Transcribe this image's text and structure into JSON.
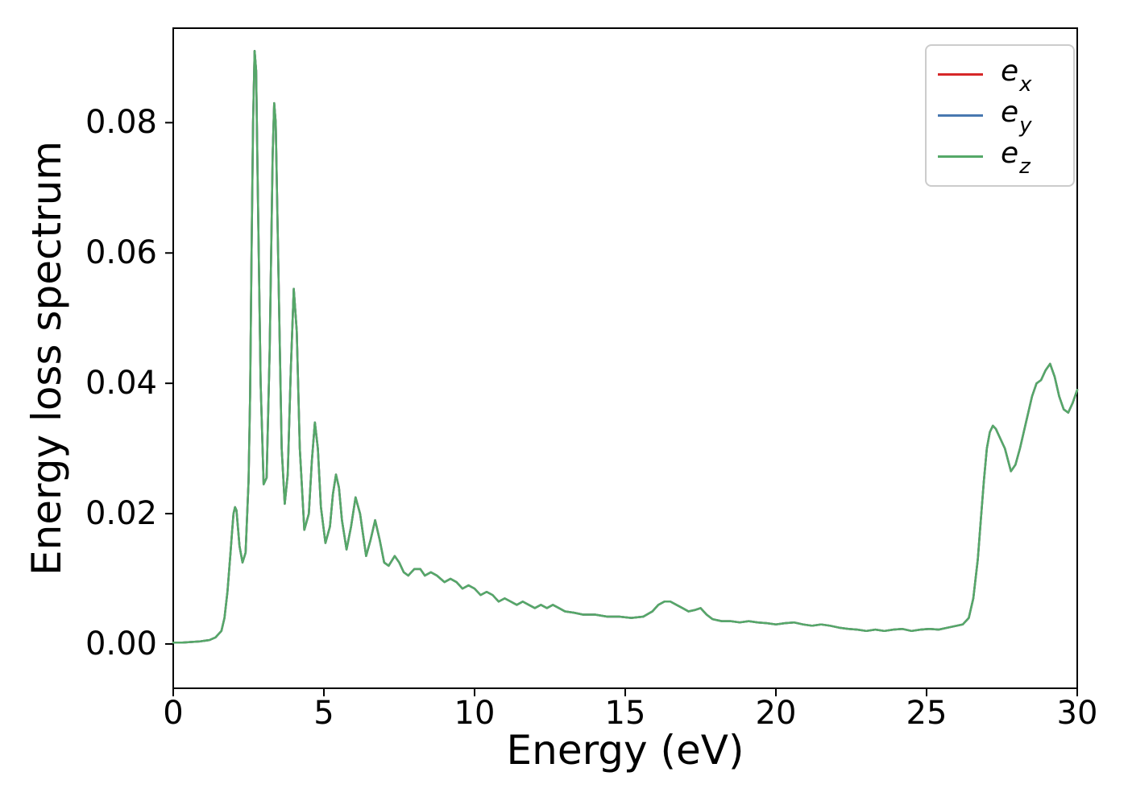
{
  "axes": {
    "xlabel": "Energy (eV)",
    "ylabel": "Energy loss spectrum",
    "xticks": {
      "values": [
        0,
        5,
        10,
        15,
        20,
        25,
        30
      ],
      "labels": [
        "0",
        "5",
        "10",
        "15",
        "20",
        "25",
        "30"
      ]
    },
    "yticks": {
      "values": [
        0.0,
        0.02,
        0.04,
        0.06,
        0.08
      ],
      "labels": [
        "0.00",
        "0.02",
        "0.04",
        "0.06",
        "0.08"
      ]
    }
  },
  "legend": {
    "items": [
      {
        "base": "e",
        "sub": "x",
        "color": "#d62728"
      },
      {
        "base": "e",
        "sub": "y",
        "color": "#4878b0"
      },
      {
        "base": "e",
        "sub": "z",
        "color": "#55a868"
      }
    ]
  },
  "chart_data": {
    "type": "line",
    "title": "",
    "xlabel": "Energy (eV)",
    "ylabel": "Energy loss spectrum",
    "xlim": [
      0,
      30
    ],
    "ylim": [
      -0.0068,
      0.0945
    ],
    "grid": false,
    "legend_position": "upper right",
    "note": "Three polarization spectra e_x, e_y, e_z coincide exactly; only the last-drawn green e_z curve is visible.",
    "x": [
      0,
      0.3,
      0.6,
      0.9,
      1.2,
      1.4,
      1.6,
      1.7,
      1.8,
      1.9,
      1.95,
      2.0,
      2.05,
      2.1,
      2.2,
      2.3,
      2.4,
      2.5,
      2.55,
      2.6,
      2.65,
      2.7,
      2.75,
      2.8,
      2.9,
      3.0,
      3.1,
      3.2,
      3.3,
      3.35,
      3.4,
      3.5,
      3.6,
      3.7,
      3.8,
      3.9,
      4.0,
      4.1,
      4.2,
      4.35,
      4.5,
      4.6,
      4.7,
      4.8,
      4.9,
      5.05,
      5.2,
      5.3,
      5.4,
      5.5,
      5.6,
      5.75,
      5.9,
      6.05,
      6.2,
      6.4,
      6.55,
      6.7,
      6.85,
      7.0,
      7.15,
      7.35,
      7.5,
      7.65,
      7.8,
      8.0,
      8.2,
      8.35,
      8.55,
      8.75,
      9.0,
      9.2,
      9.4,
      9.6,
      9.8,
      10.0,
      10.2,
      10.4,
      10.6,
      10.8,
      11.0,
      11.2,
      11.4,
      11.6,
      11.8,
      12.0,
      12.2,
      12.4,
      12.6,
      12.8,
      13.0,
      13.3,
      13.6,
      14.0,
      14.4,
      14.8,
      15.2,
      15.6,
      15.9,
      16.1,
      16.3,
      16.5,
      16.7,
      16.9,
      17.1,
      17.3,
      17.5,
      17.7,
      17.9,
      18.2,
      18.5,
      18.8,
      19.1,
      19.4,
      19.7,
      20.0,
      20.3,
      20.6,
      20.9,
      21.2,
      21.5,
      21.8,
      22.1,
      22.4,
      22.7,
      23.0,
      23.3,
      23.6,
      23.9,
      24.2,
      24.5,
      24.8,
      25.1,
      25.4,
      25.7,
      26.0,
      26.2,
      26.4,
      26.55,
      26.7,
      26.8,
      26.9,
      27.0,
      27.1,
      27.2,
      27.3,
      27.45,
      27.6,
      27.8,
      27.95,
      28.1,
      28.3,
      28.5,
      28.65,
      28.8,
      28.95,
      29.1,
      29.25,
      29.4,
      29.55,
      29.7,
      29.85,
      30.0
    ],
    "shared_y": [
      0.0002,
      0.0002,
      0.0003,
      0.0004,
      0.0006,
      0.001,
      0.002,
      0.004,
      0.008,
      0.014,
      0.017,
      0.02,
      0.021,
      0.0205,
      0.015,
      0.0125,
      0.014,
      0.025,
      0.038,
      0.06,
      0.08,
      0.091,
      0.088,
      0.072,
      0.04,
      0.0245,
      0.0255,
      0.045,
      0.075,
      0.083,
      0.08,
      0.055,
      0.03,
      0.0215,
      0.026,
      0.042,
      0.0545,
      0.048,
      0.03,
      0.0175,
      0.02,
      0.028,
      0.034,
      0.03,
      0.021,
      0.0155,
      0.018,
      0.023,
      0.026,
      0.024,
      0.019,
      0.0145,
      0.018,
      0.0225,
      0.02,
      0.0135,
      0.016,
      0.019,
      0.016,
      0.0125,
      0.012,
      0.0135,
      0.0125,
      0.011,
      0.0105,
      0.0115,
      0.0115,
      0.0105,
      0.011,
      0.0105,
      0.0095,
      0.01,
      0.0095,
      0.0085,
      0.009,
      0.0085,
      0.0075,
      0.008,
      0.0075,
      0.0065,
      0.007,
      0.0065,
      0.006,
      0.0065,
      0.006,
      0.0055,
      0.006,
      0.0055,
      0.006,
      0.0055,
      0.005,
      0.0048,
      0.0045,
      0.0045,
      0.0042,
      0.0042,
      0.004,
      0.0042,
      0.005,
      0.006,
      0.0065,
      0.0065,
      0.006,
      0.0055,
      0.005,
      0.0052,
      0.0055,
      0.0045,
      0.0038,
      0.0035,
      0.0035,
      0.0033,
      0.0035,
      0.0033,
      0.0032,
      0.003,
      0.0032,
      0.0033,
      0.003,
      0.0028,
      0.003,
      0.0028,
      0.0025,
      0.0023,
      0.0022,
      0.002,
      0.0022,
      0.002,
      0.0022,
      0.0023,
      0.002,
      0.0022,
      0.0023,
      0.0022,
      0.0025,
      0.0028,
      0.003,
      0.004,
      0.007,
      0.013,
      0.019,
      0.025,
      0.03,
      0.0325,
      0.0335,
      0.033,
      0.0315,
      0.03,
      0.0265,
      0.0275,
      0.03,
      0.034,
      0.038,
      0.04,
      0.0405,
      0.042,
      0.043,
      0.041,
      0.038,
      0.036,
      0.0355,
      0.037,
      0.039
    ],
    "series": [
      {
        "name": "e_x",
        "color": "#d62728",
        "y": "shared"
      },
      {
        "name": "e_y",
        "color": "#4878b0",
        "y": "shared"
      },
      {
        "name": "e_z",
        "color": "#55a868",
        "y": "shared"
      }
    ]
  }
}
